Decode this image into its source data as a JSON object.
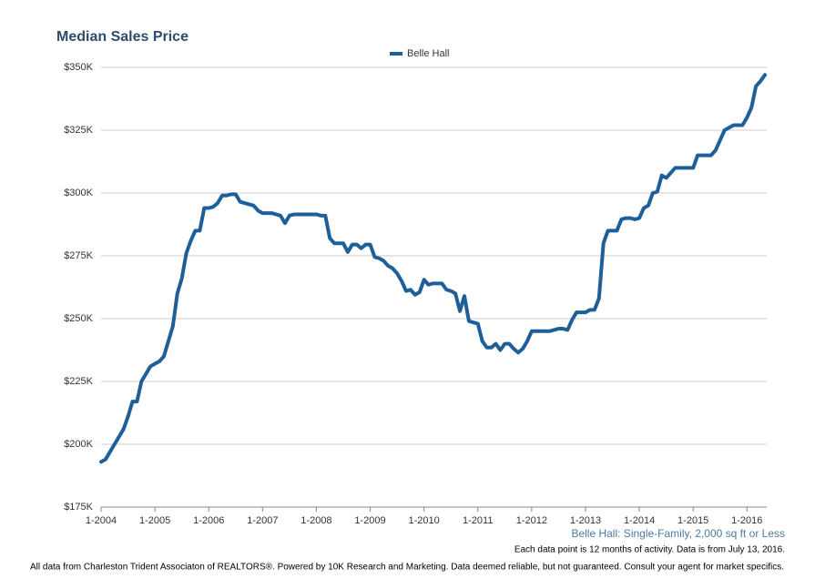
{
  "chart_data": {
    "type": "line",
    "title": "Median Sales Price",
    "subtitle": "Belle Hall: Single-Family, 2,000 sq ft or Less",
    "note": "Each data point is 12 months of activity. Data is from July 13, 2016.",
    "footer": "All data from Charleston Trident Associaton of REALTORS®. Powered by 10K Research and Marketing. Data deemed reliable, but not guaranteed. Consult your agent for market specifics.",
    "categories": [
      "1-2004",
      null,
      null,
      null,
      null,
      null,
      null,
      null,
      null,
      null,
      null,
      null,
      "1-2005",
      null,
      null,
      null,
      null,
      null,
      null,
      null,
      null,
      null,
      null,
      null,
      "1-2006",
      null,
      null,
      null,
      null,
      null,
      null,
      null,
      null,
      null,
      null,
      null,
      "1-2007",
      null,
      null,
      null,
      null,
      null,
      null,
      null,
      null,
      null,
      null,
      null,
      "1-2008",
      null,
      null,
      null,
      null,
      null,
      null,
      null,
      null,
      null,
      null,
      null,
      "1-2009",
      null,
      null,
      null,
      null,
      null,
      null,
      null,
      null,
      null,
      null,
      null,
      "1-2010",
      null,
      null,
      null,
      null,
      null,
      null,
      null,
      null,
      null,
      null,
      null,
      "1-2011",
      null,
      null,
      null,
      null,
      null,
      null,
      null,
      null,
      null,
      null,
      null,
      "1-2012",
      null,
      null,
      null,
      null,
      null,
      null,
      null,
      null,
      null,
      null,
      null,
      "1-2013",
      null,
      null,
      null,
      null,
      null,
      null,
      null,
      null,
      null,
      null,
      null,
      "1-2014",
      null,
      null,
      null,
      null,
      null,
      null,
      null,
      null,
      null,
      null,
      null,
      "1-2015",
      null,
      null,
      null,
      null,
      null,
      null,
      null,
      null,
      null,
      null,
      null,
      "1-2016",
      null,
      null,
      null,
      null
    ],
    "series": [
      {
        "name": "Belle Hall",
        "color": "#1f5f99",
        "values": [
          193000,
          194000,
          197000,
          200000,
          203000,
          206000,
          211000,
          217000,
          217000,
          225000,
          228000,
          231000,
          232000,
          233000,
          235000,
          241000,
          247000,
          260000,
          266000,
          276000,
          281000,
          285000,
          285000,
          294000,
          294000,
          294500,
          296000,
          299000,
          299000,
          299500,
          299500,
          296500,
          296000,
          295500,
          295000,
          293000,
          292000,
          292000,
          292000,
          291500,
          291000,
          288000,
          291000,
          291500,
          291500,
          291500,
          291500,
          291500,
          291500,
          291000,
          291000,
          282000,
          280000,
          280000,
          280000,
          276500,
          279500,
          279500,
          278000,
          279500,
          279500,
          274500,
          274000,
          273000,
          271000,
          270000,
          268000,
          265000,
          261000,
          261500,
          259500,
          260500,
          265500,
          263500,
          264000,
          264000,
          264000,
          261500,
          261000,
          260000,
          253000,
          259000,
          249000,
          248500,
          248000,
          241000,
          238500,
          238500,
          240000,
          237500,
          240000,
          240000,
          238000,
          236500,
          238000,
          241000,
          245000,
          245000,
          245000,
          245000,
          245000,
          245500,
          246000,
          246000,
          245500,
          249500,
          252500,
          252500,
          252500,
          253500,
          253500,
          258000,
          280000,
          285000,
          285000,
          285000,
          289500,
          290000,
          290000,
          289500,
          290000,
          294000,
          295000,
          300000,
          300500,
          307000,
          306000,
          308000,
          310000,
          310000,
          310000,
          310000,
          310000,
          315000,
          315000,
          315000,
          315000,
          317000,
          321000,
          325000,
          326000,
          327000,
          327000,
          327000,
          330000,
          334000,
          342500,
          344500,
          347000
        ]
      }
    ],
    "ylim": [
      175000,
      350000
    ],
    "yticks": [
      {
        "value": 175000,
        "label": "$175K"
      },
      {
        "value": 200000,
        "label": "$200K"
      },
      {
        "value": 225000,
        "label": "$225K"
      },
      {
        "value": 250000,
        "label": "$250K"
      },
      {
        "value": 275000,
        "label": "$275K"
      },
      {
        "value": 300000,
        "label": "$300K"
      },
      {
        "value": 325000,
        "label": "$325K"
      },
      {
        "value": 350000,
        "label": "$350K"
      }
    ],
    "grid": true,
    "legend": "top"
  }
}
